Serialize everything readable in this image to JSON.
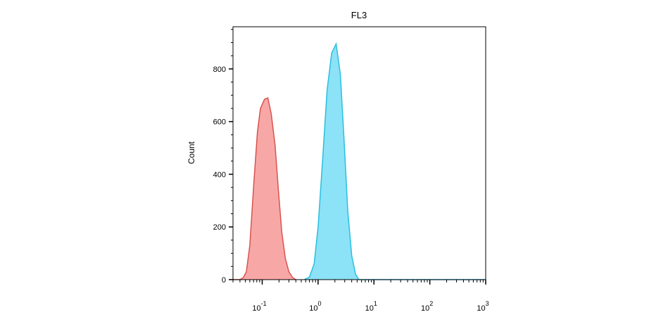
{
  "chart_data": {
    "type": "histogram-overlay",
    "title": "FL3",
    "ylabel": "Count",
    "xscale": "log",
    "xlim": [
      0.03,
      1000
    ],
    "ylim": [
      0,
      960
    ],
    "xticks": [
      {
        "value": 0.1,
        "label": "10",
        "power": "-1"
      },
      {
        "value": 1,
        "label": "10",
        "power": "0"
      },
      {
        "value": 10,
        "label": "10",
        "power": "1"
      },
      {
        "value": 100,
        "label": "10",
        "power": "2"
      },
      {
        "value": 1000,
        "label": "10",
        "power": "3"
      }
    ],
    "yticks": [
      0,
      200,
      400,
      600,
      800
    ],
    "series": [
      {
        "color": "#d9534f",
        "fill": "#f7a3a1",
        "x": [
          0.03,
          0.04,
          0.046,
          0.052,
          0.06,
          0.071,
          0.082,
          0.093,
          0.11,
          0.126,
          0.145,
          0.17,
          0.195,
          0.224,
          0.26,
          0.3,
          0.35,
          0.4
        ],
        "values": [
          0,
          0,
          8,
          30,
          130,
          370,
          560,
          650,
          685,
          690,
          630,
          510,
          340,
          180,
          80,
          30,
          8,
          0
        ]
      },
      {
        "color": "#2bbfe0",
        "fill": "#86e0f6",
        "x": [
          0.56,
          0.7,
          0.85,
          1.0,
          1.2,
          1.45,
          1.75,
          2.1,
          2.5,
          2.9,
          3.4,
          4.0,
          4.7,
          5.4,
          1000
        ],
        "values": [
          0,
          10,
          60,
          200,
          450,
          720,
          860,
          895,
          780,
          540,
          260,
          90,
          20,
          0,
          0
        ]
      }
    ]
  }
}
